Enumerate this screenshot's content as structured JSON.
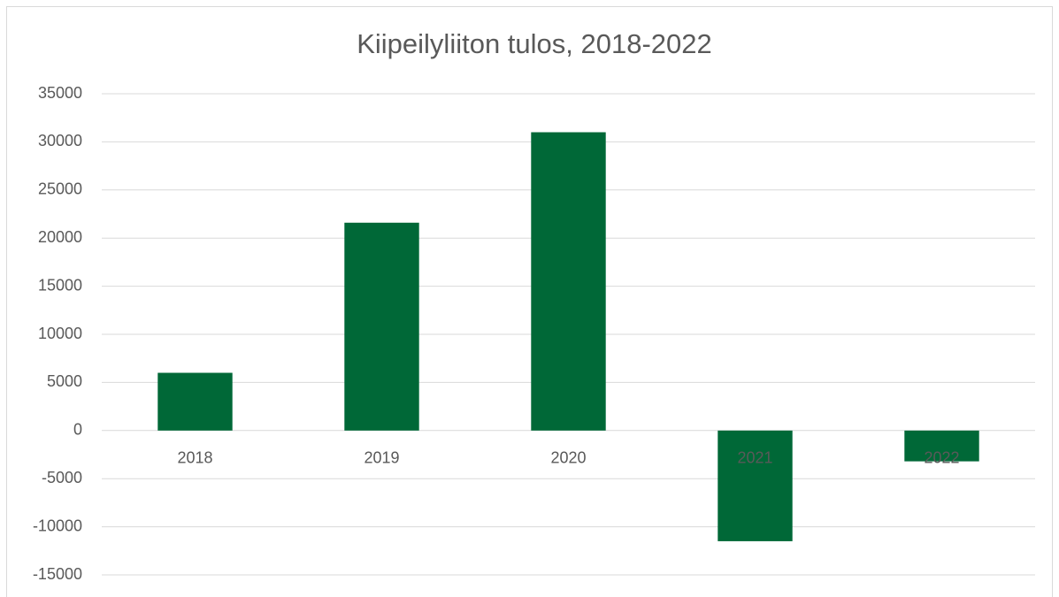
{
  "chart_data": {
    "type": "bar",
    "title": "Kiipeilyliiton tulos, 2018-2022",
    "categories": [
      "2018",
      "2019",
      "2020",
      "2021",
      "2022"
    ],
    "values": [
      6000,
      21600,
      31000,
      -11500,
      -3200
    ],
    "color": "#006837",
    "ylim": [
      -15000,
      35000
    ],
    "yticks": [
      -15000,
      -10000,
      -5000,
      0,
      5000,
      10000,
      15000,
      20000,
      25000,
      30000,
      35000
    ],
    "grid": true
  }
}
